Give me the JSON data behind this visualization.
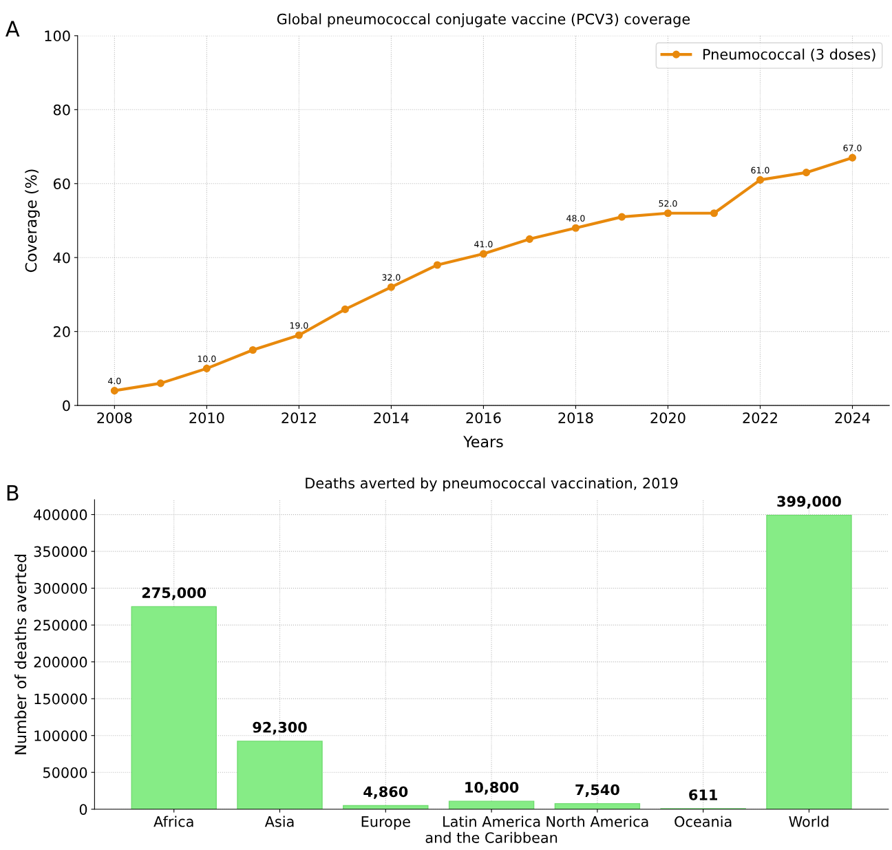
{
  "chart_data": [
    {
      "type": "line",
      "title": "Global pneumococcal conjugate vaccine (PCV3) coverage",
      "xlabel": "Years",
      "ylabel": "Coverage (%)",
      "annotations": [
        "A"
      ],
      "x": [
        2008,
        2009,
        2010,
        2011,
        2012,
        2013,
        2014,
        2015,
        2016,
        2017,
        2018,
        2019,
        2020,
        2021,
        2022,
        2023,
        2024
      ],
      "series": [
        {
          "name": "Pneumococcal (3 doses)",
          "color": "#e8890c",
          "values": [
            4,
            6,
            10,
            15,
            19,
            26,
            32,
            38,
            41,
            45,
            48,
            51,
            52,
            52,
            61,
            63,
            67
          ],
          "value_labels": [
            "4.0",
            null,
            "10.0",
            null,
            "19.0",
            null,
            "32.0",
            null,
            "41.0",
            null,
            "48.0",
            null,
            "52.0",
            null,
            "61.0",
            null,
            "67.0"
          ]
        }
      ],
      "xlim": [
        2007.2,
        2024.8
      ],
      "xticks": [
        2008,
        2010,
        2012,
        2014,
        2016,
        2018,
        2020,
        2022,
        2024
      ],
      "ylim": [
        0,
        100
      ],
      "yticks": [
        0,
        20,
        40,
        60,
        80,
        100
      ],
      "grid": true,
      "legend": "top right",
      "marker": "circle",
      "line_style": "solid"
    },
    {
      "type": "bar",
      "title": "Deaths averted by pneumococcal vaccination, 2019",
      "ylabel": "Number of deaths averted",
      "annotations": [
        "B"
      ],
      "categories": [
        "Africa",
        "Asia",
        "Europe",
        "Latin America\nand the Caribbean",
        "North America",
        "Oceania",
        "World"
      ],
      "values": [
        275000,
        92300,
        4860,
        10800,
        7540,
        611,
        399000
      ],
      "color": "#86ec86",
      "value_labels": [
        "275,000",
        "92,300",
        "4,860",
        "10,800",
        "7,540",
        "611",
        "399,000"
      ],
      "ylim": [
        0,
        420000
      ],
      "yticks": [
        0,
        50000,
        100000,
        150000,
        200000,
        250000,
        300000,
        350000,
        400000
      ],
      "grid": true
    }
  ]
}
